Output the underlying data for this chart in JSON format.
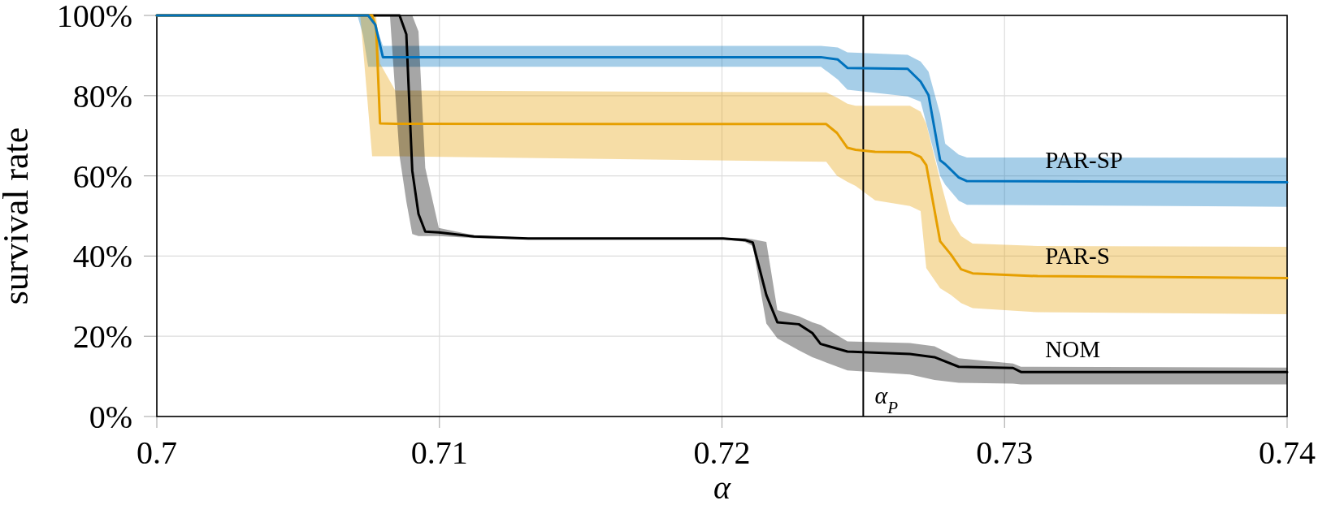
{
  "chart_data": {
    "type": "line",
    "xlabel": "α",
    "ylabel": "survival rate",
    "xlim": [
      0.7,
      0.74
    ],
    "xticks": [
      0.7,
      0.71,
      0.72,
      0.73,
      0.74
    ],
    "ylim": [
      0,
      100
    ],
    "yticks": [
      {
        "value": 0,
        "label": "0%"
      },
      {
        "value": 20,
        "label": "20%"
      },
      {
        "value": 40,
        "label": "40%"
      },
      {
        "value": 60,
        "label": "60%"
      },
      {
        "value": 80,
        "label": "80%"
      },
      {
        "value": 100,
        "label": "100%"
      }
    ],
    "grid": true,
    "ref_lines": [
      {
        "axis": "x",
        "value": 0.725,
        "label": "α$_{P}$",
        "color": "#000000"
      }
    ],
    "series": [
      {
        "name": "PAR-SP",
        "color": "#0072bd",
        "x": [
          0.7,
          0.7071,
          0.7073,
          0.70748,
          0.70773,
          0.708,
          0.7235,
          0.7241,
          0.72444,
          0.72657,
          0.72703,
          0.72731,
          0.72772,
          0.7279,
          0.72838,
          0.72867,
          0.74
        ],
        "values": [
          100,
          100,
          100,
          100,
          97.7,
          89.6,
          89.6,
          89.0,
          86.9,
          86.7,
          83.5,
          80.1,
          63.9,
          62.9,
          59.6,
          58.7,
          58.4
        ],
        "lower": [
          100,
          100,
          95,
          87.2,
          87.2,
          87.2,
          87.2,
          84,
          81.5,
          79.8,
          78.5,
          71,
          60,
          57.8,
          53.8,
          52.8,
          52.3
        ],
        "upper": [
          100,
          100,
          100,
          100,
          98,
          92.4,
          92.4,
          92.0,
          90.8,
          90.2,
          88.5,
          86,
          75.4,
          68,
          65.3,
          64.6,
          64.5
        ]
      },
      {
        "name": "PAR-S",
        "color": "#e69f00",
        "x": [
          0.7,
          0.7072,
          0.70762,
          0.70776,
          0.7079,
          0.70844,
          0.72369,
          0.72407,
          0.72444,
          0.72473,
          0.72542,
          0.72665,
          0.72703,
          0.72723,
          0.72772,
          0.7281,
          0.72846,
          0.72887,
          0.73117,
          0.74
        ],
        "values": [
          100,
          100,
          100,
          97,
          73.1,
          73.0,
          72.9,
          70.7,
          67.0,
          66.5,
          66.0,
          65.9,
          64.7,
          62.7,
          43.7,
          40.4,
          36.7,
          35.7,
          35.0,
          34.5
        ],
        "lower": [
          100,
          100,
          64.9,
          64.9,
          64.9,
          64.9,
          63.5,
          60,
          58.5,
          57.5,
          53.9,
          52.5,
          51.2,
          37,
          32,
          30.3,
          28.3,
          27,
          26,
          25.5
        ],
        "upper": [
          100,
          100,
          100,
          100,
          88,
          81.3,
          80.8,
          79.5,
          78,
          77.5,
          77.5,
          77.5,
          76,
          73,
          59,
          49,
          45,
          43.1,
          42.5,
          42.3
        ]
      },
      {
        "name": "NOM",
        "color": "#000000",
        "x": [
          0.7,
          0.70825,
          0.70859,
          0.70883,
          0.70904,
          0.70926,
          0.7095,
          0.70998,
          0.71122,
          0.71314,
          0.72004,
          0.72081,
          0.72109,
          0.72157,
          0.72196,
          0.72272,
          0.7232,
          0.72349,
          0.72444,
          0.72665,
          0.72752,
          0.72838,
          0.7303,
          0.73058,
          0.74
        ],
        "values": [
          100,
          100,
          100,
          95.3,
          61.3,
          50.5,
          46.1,
          45.9,
          44.9,
          44.4,
          44.4,
          44.0,
          43.4,
          30.3,
          23.5,
          23.0,
          20.8,
          18.1,
          16.2,
          15.6,
          14.8,
          12.4,
          12.1,
          11.1,
          11.1
        ],
        "lower": [
          100,
          100,
          65,
          53.6,
          45.5,
          45,
          45,
          45,
          44.5,
          44.2,
          44.2,
          43.5,
          42.5,
          23.2,
          19.5,
          16.5,
          14.8,
          14,
          11.5,
          10.5,
          9.1,
          8.4,
          8.2,
          8.0,
          8.0
        ],
        "upper": [
          100,
          100,
          100,
          100,
          100,
          96,
          62,
          47,
          45.2,
          44.6,
          44.6,
          44.5,
          44.2,
          43.5,
          26.5,
          25,
          23.5,
          22.8,
          18.7,
          18.3,
          17.5,
          14.5,
          13.2,
          12.4,
          12.2
        ]
      }
    ]
  }
}
